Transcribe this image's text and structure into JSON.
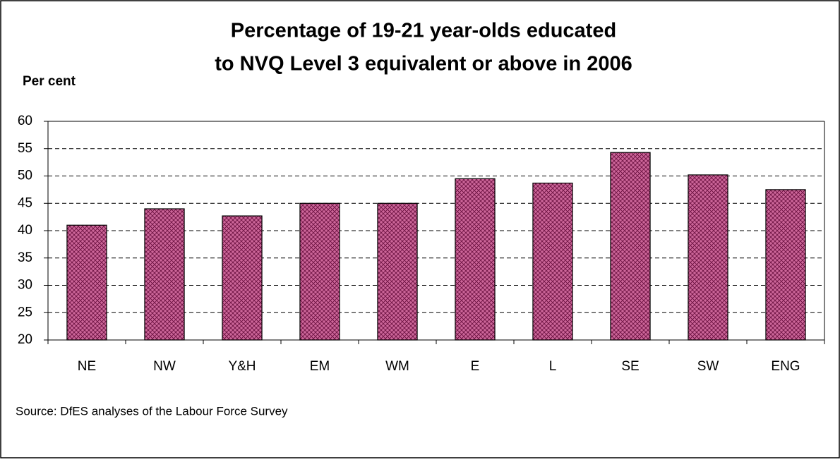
{
  "chart_data": {
    "type": "bar",
    "title_lines": [
      "Percentage of 19-21 year-olds educated",
      "to NVQ Level 3 equivalent or above in 2006"
    ],
    "y_label": "Per cent",
    "categories": [
      "NE",
      "NW",
      "Y&H",
      "EM",
      "WM",
      "E",
      "L",
      "SE",
      "SW",
      "ENG"
    ],
    "values": [
      41,
      44,
      42.7,
      45,
      45,
      49.5,
      48.7,
      54.3,
      50.2,
      47.5
    ],
    "color": "#cc6699",
    "ylim": [
      20,
      60
    ],
    "yticks": [
      20,
      25,
      30,
      35,
      40,
      45,
      50,
      55,
      60
    ],
    "grid": true,
    "source": "Source: DfES analyses of the Labour Force Survey"
  }
}
